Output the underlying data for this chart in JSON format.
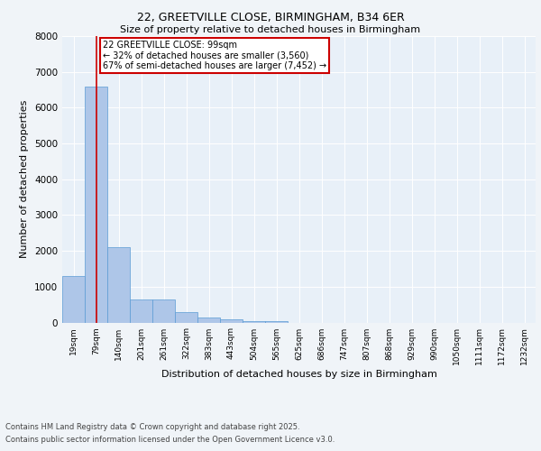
{
  "title1": "22, GREETVILLE CLOSE, BIRMINGHAM, B34 6ER",
  "title2": "Size of property relative to detached houses in Birmingham",
  "xlabel": "Distribution of detached houses by size in Birmingham",
  "ylabel": "Number of detached properties",
  "categories": [
    "19sqm",
    "79sqm",
    "140sqm",
    "201sqm",
    "261sqm",
    "322sqm",
    "383sqm",
    "443sqm",
    "504sqm",
    "565sqm",
    "625sqm",
    "686sqm",
    "747sqm",
    "807sqm",
    "868sqm",
    "929sqm",
    "990sqm",
    "1050sqm",
    "1111sqm",
    "1172sqm",
    "1232sqm"
  ],
  "values": [
    1300,
    6600,
    2100,
    650,
    650,
    290,
    140,
    80,
    40,
    40,
    0,
    0,
    0,
    0,
    0,
    0,
    0,
    0,
    0,
    0,
    0
  ],
  "bar_color": "#aec6e8",
  "bar_edge_color": "#5b9bd5",
  "vline_x": 1,
  "vline_color": "#cc0000",
  "annotation_text": "22 GREETVILLE CLOSE: 99sqm\n← 32% of detached houses are smaller (3,560)\n67% of semi-detached houses are larger (7,452) →",
  "annotation_box_color": "#ffffff",
  "annotation_border_color": "#cc0000",
  "ylim": [
    0,
    8000
  ],
  "yticks": [
    0,
    1000,
    2000,
    3000,
    4000,
    5000,
    6000,
    7000,
    8000
  ],
  "footnote1": "Contains HM Land Registry data © Crown copyright and database right 2025.",
  "footnote2": "Contains public sector information licensed under the Open Government Licence v3.0.",
  "bg_color": "#e8f0f8",
  "fig_bg_color": "#f0f4f8"
}
